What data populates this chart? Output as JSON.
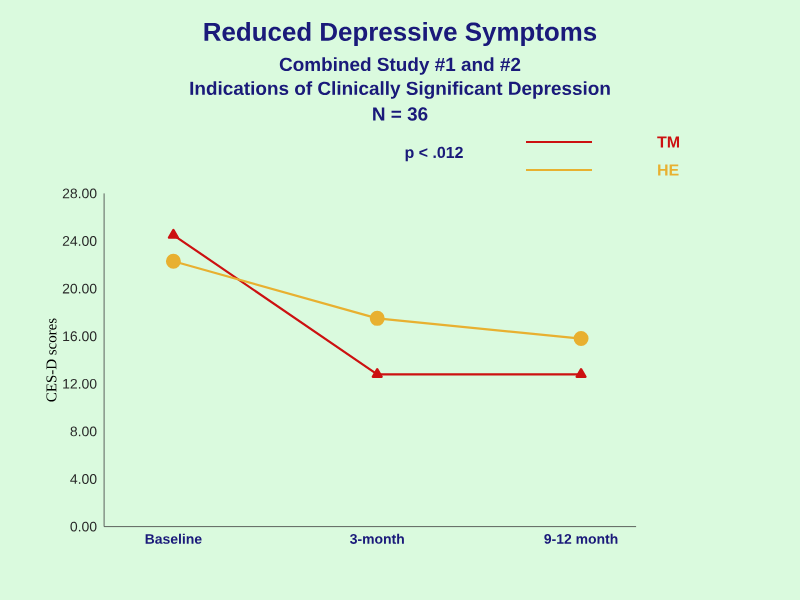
{
  "chart_data": {
    "type": "line",
    "title": "Reduced Depressive Symptoms",
    "subtitle": "Combined Study #1 and #2",
    "annotations": [
      "Indications of Clinically Significant Depression",
      "N = 36",
      "p < .012"
    ],
    "ylabel": "CES-D scores",
    "categories": [
      "Baseline",
      "3-month",
      "9-12 month"
    ],
    "series": [
      {
        "name": "TM",
        "color": "#cc1111",
        "marker": "triangle",
        "values": [
          24.5,
          12.8,
          12.8
        ]
      },
      {
        "name": "HE",
        "color": "#e8b030",
        "marker": "circle",
        "values": [
          22.3,
          17.5,
          15.8
        ]
      }
    ],
    "ylim": [
      0,
      28
    ],
    "yticks": [
      {
        "value": 0,
        "label": "0.00"
      },
      {
        "value": 4,
        "label": "4.00"
      },
      {
        "value": 8,
        "label": "8.00"
      },
      {
        "value": 12,
        "label": "12.00"
      },
      {
        "value": 16,
        "label": "16.00"
      },
      {
        "value": 20,
        "label": "20.00"
      },
      {
        "value": 24,
        "label": "24.00"
      },
      {
        "value": 28,
        "label": "28.00"
      }
    ],
    "legend": "top right"
  }
}
